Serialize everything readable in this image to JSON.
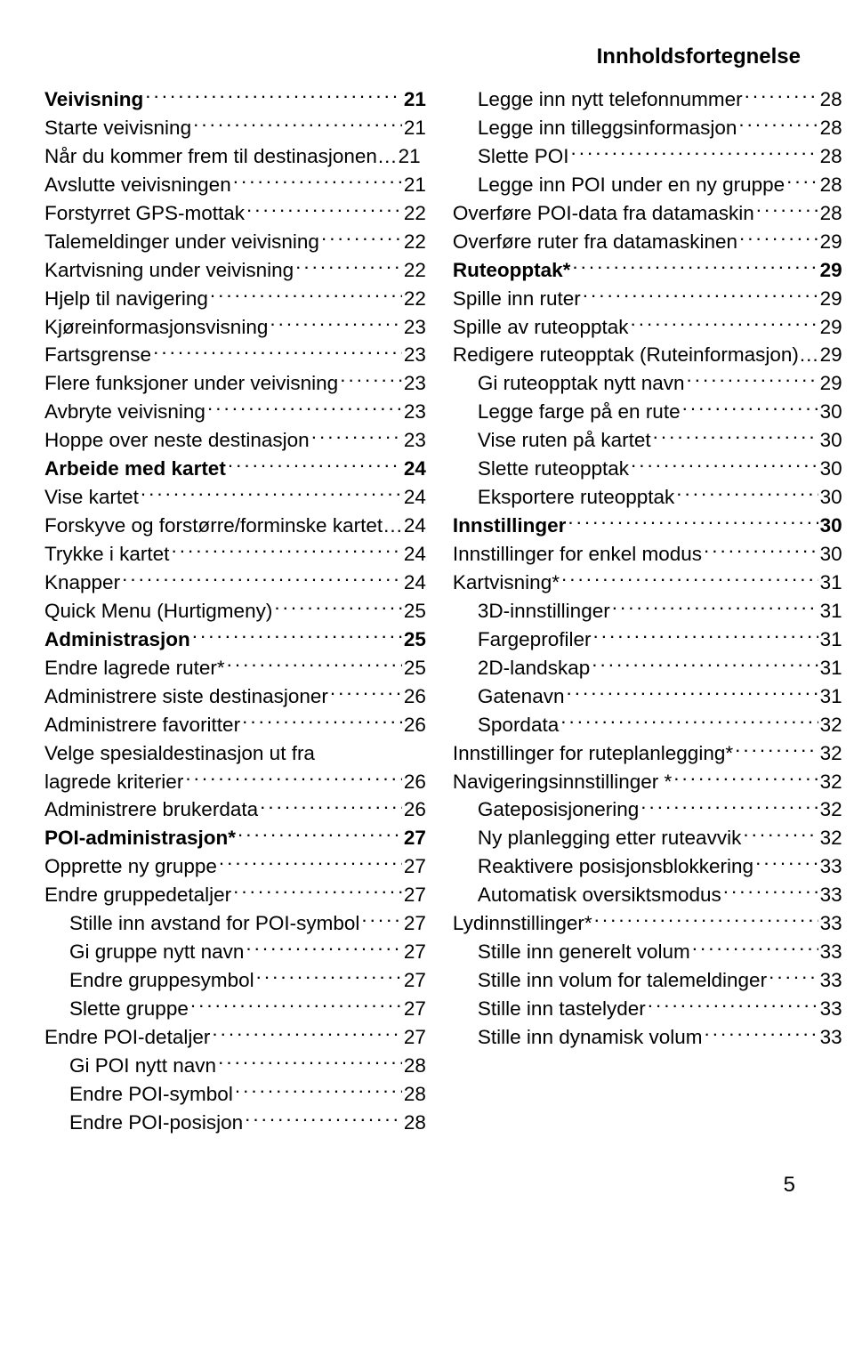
{
  "headerTitle": "Innholdsfortegnelse",
  "pageNumber": "5",
  "fonts": {
    "body": "Arial, Helvetica, sans-serif",
    "size": 22.5,
    "headerSize": 24
  },
  "colors": {
    "text": "#000000",
    "background": "#ffffff"
  },
  "columns": [
    [
      {
        "label": "Veivisning",
        "page": "21",
        "bold": true,
        "indent": 0
      },
      {
        "label": "Starte veivisning",
        "page": "21",
        "bold": false,
        "indent": 0
      },
      {
        "label": "Når du kommer frem til destinasjonen",
        "page": "21",
        "bold": false,
        "indent": 0,
        "noleader": true
      },
      {
        "label": "Avslutte veivisningen",
        "page": "21",
        "bold": false,
        "indent": 0
      },
      {
        "label": "Forstyrret GPS-mottak",
        "page": "22",
        "bold": false,
        "indent": 0
      },
      {
        "label": "Talemeldinger under veivisning",
        "page": "22",
        "bold": false,
        "indent": 0
      },
      {
        "label": "Kartvisning under veivisning",
        "page": "22",
        "bold": false,
        "indent": 0
      },
      {
        "label": "Hjelp til navigering",
        "page": "22",
        "bold": false,
        "indent": 0
      },
      {
        "label": "Kjøreinformasjonsvisning",
        "page": "23",
        "bold": false,
        "indent": 0
      },
      {
        "label": "Fartsgrense",
        "page": "23",
        "bold": false,
        "indent": 0
      },
      {
        "label": "Flere funksjoner under veivisning",
        "page": "23",
        "bold": false,
        "indent": 0
      },
      {
        "label": "Avbryte veivisning",
        "page": "23",
        "bold": false,
        "indent": 0
      },
      {
        "label": "Hoppe over neste destinasjon",
        "page": "23",
        "bold": false,
        "indent": 0
      },
      {
        "label": "Arbeide med kartet",
        "page": "24",
        "bold": true,
        "indent": 0
      },
      {
        "label": "Vise kartet",
        "page": "24",
        "bold": false,
        "indent": 0
      },
      {
        "label": "Forskyve og forstørre/forminske kartet",
        "page": "24",
        "bold": false,
        "indent": 0,
        "noleader": true
      },
      {
        "label": "Trykke i kartet",
        "page": "24",
        "bold": false,
        "indent": 0
      },
      {
        "label": "Knapper",
        "page": "24",
        "bold": false,
        "indent": 0
      },
      {
        "label": "Quick Menu (Hurtigmeny)",
        "page": "25",
        "bold": false,
        "indent": 0
      },
      {
        "label": "Administrasjon",
        "page": "25",
        "bold": true,
        "indent": 0
      },
      {
        "label": "Endre lagrede ruter*",
        "page": "25",
        "bold": false,
        "indent": 0
      },
      {
        "label": "Administrere siste destinasjoner",
        "page": "26",
        "bold": false,
        "indent": 0
      },
      {
        "label": "Administrere favoritter",
        "page": "26",
        "bold": false,
        "indent": 0
      },
      {
        "label": "Velge spesialdestinasjon ut fra lagrede kriterier",
        "page": "26",
        "bold": false,
        "indent": 0,
        "wrap": true
      },
      {
        "label": "Administrere brukerdata",
        "page": "26",
        "bold": false,
        "indent": 0
      },
      {
        "label": "POI-administrasjon*",
        "page": "27",
        "bold": true,
        "indent": 0
      },
      {
        "label": "Opprette ny gruppe",
        "page": "27",
        "bold": false,
        "indent": 0
      },
      {
        "label": "Endre gruppedetaljer",
        "page": "27",
        "bold": false,
        "indent": 0
      },
      {
        "label": "Stille inn avstand for POI-symbol",
        "page": "27",
        "bold": false,
        "indent": 1
      },
      {
        "label": "Gi gruppe nytt navn",
        "page": "27",
        "bold": false,
        "indent": 1
      },
      {
        "label": "Endre gruppesymbol",
        "page": "27",
        "bold": false,
        "indent": 1
      },
      {
        "label": "Slette gruppe",
        "page": "27",
        "bold": false,
        "indent": 1
      },
      {
        "label": "Endre POI-detaljer",
        "page": "27",
        "bold": false,
        "indent": 0
      },
      {
        "label": "Gi POI nytt navn",
        "page": "28",
        "bold": false,
        "indent": 1
      },
      {
        "label": "Endre POI-symbol",
        "page": "28",
        "bold": false,
        "indent": 1
      },
      {
        "label": "Endre POI-posisjon",
        "page": "28",
        "bold": false,
        "indent": 1
      }
    ],
    [
      {
        "label": "Legge inn nytt telefonnummer",
        "page": "28",
        "bold": false,
        "indent": 1
      },
      {
        "label": "Legge inn tilleggsinformasjon",
        "page": "28",
        "bold": false,
        "indent": 1
      },
      {
        "label": "Slette POI",
        "page": "28",
        "bold": false,
        "indent": 1
      },
      {
        "label": "Legge inn POI under en ny gruppe",
        "page": "28",
        "bold": false,
        "indent": 1
      },
      {
        "label": "Overføre POI-data fra datamaskin",
        "page": "28",
        "bold": false,
        "indent": 0
      },
      {
        "label": "Overføre ruter fra datamaskinen",
        "page": "29",
        "bold": false,
        "indent": 0
      },
      {
        "label": "Ruteopptak*",
        "page": "29",
        "bold": true,
        "indent": 0
      },
      {
        "label": "Spille inn ruter",
        "page": "29",
        "bold": false,
        "indent": 0
      },
      {
        "label": "Spille av ruteopptak",
        "page": "29",
        "bold": false,
        "indent": 0
      },
      {
        "label": "Redigere ruteopptak (Ruteinformasjon)",
        "page": "29",
        "bold": false,
        "indent": 0,
        "noleader": true
      },
      {
        "label": "Gi ruteopptak nytt navn",
        "page": "29",
        "bold": false,
        "indent": 1
      },
      {
        "label": "Legge farge på en rute",
        "page": "30",
        "bold": false,
        "indent": 1
      },
      {
        "label": "Vise ruten på kartet",
        "page": "30",
        "bold": false,
        "indent": 1
      },
      {
        "label": "Slette ruteopptak",
        "page": "30",
        "bold": false,
        "indent": 1
      },
      {
        "label": "Eksportere ruteopptak",
        "page": "30",
        "bold": false,
        "indent": 1
      },
      {
        "label": "Innstillinger",
        "page": "30",
        "bold": true,
        "indent": 0
      },
      {
        "label": "Innstillinger for enkel modus",
        "page": "30",
        "bold": false,
        "indent": 0
      },
      {
        "label": "Kartvisning*",
        "page": "31",
        "bold": false,
        "indent": 0
      },
      {
        "label": "3D-innstillinger",
        "page": "31",
        "bold": false,
        "indent": 1
      },
      {
        "label": "Fargeprofiler",
        "page": "31",
        "bold": false,
        "indent": 1
      },
      {
        "label": "2D-landskap",
        "page": "31",
        "bold": false,
        "indent": 1
      },
      {
        "label": "Gatenavn",
        "page": "31",
        "bold": false,
        "indent": 1
      },
      {
        "label": "Spordata",
        "page": "32",
        "bold": false,
        "indent": 1
      },
      {
        "label": "Innstillinger for ruteplanlegging*",
        "page": "32",
        "bold": false,
        "indent": 0
      },
      {
        "label": "Navigeringsinnstillinger *",
        "page": "32",
        "bold": false,
        "indent": 0
      },
      {
        "label": "Gateposisjonering",
        "page": "32",
        "bold": false,
        "indent": 1
      },
      {
        "label": "Ny planlegging etter ruteavvik",
        "page": "32",
        "bold": false,
        "indent": 1
      },
      {
        "label": "Reaktivere posisjonsblokkering",
        "page": "33",
        "bold": false,
        "indent": 1
      },
      {
        "label": "Automatisk oversiktsmodus",
        "page": "33",
        "bold": false,
        "indent": 1
      },
      {
        "label": "Lydinnstillinger*",
        "page": "33",
        "bold": false,
        "indent": 0
      },
      {
        "label": "Stille inn generelt volum",
        "page": "33",
        "bold": false,
        "indent": 1
      },
      {
        "label": "Stille inn volum for talemeldinger",
        "page": "33",
        "bold": false,
        "indent": 1
      },
      {
        "label": "Stille inn tastelyder",
        "page": "33",
        "bold": false,
        "indent": 1
      },
      {
        "label": "Stille inn dynamisk volum",
        "page": "33",
        "bold": false,
        "indent": 1
      }
    ]
  ]
}
